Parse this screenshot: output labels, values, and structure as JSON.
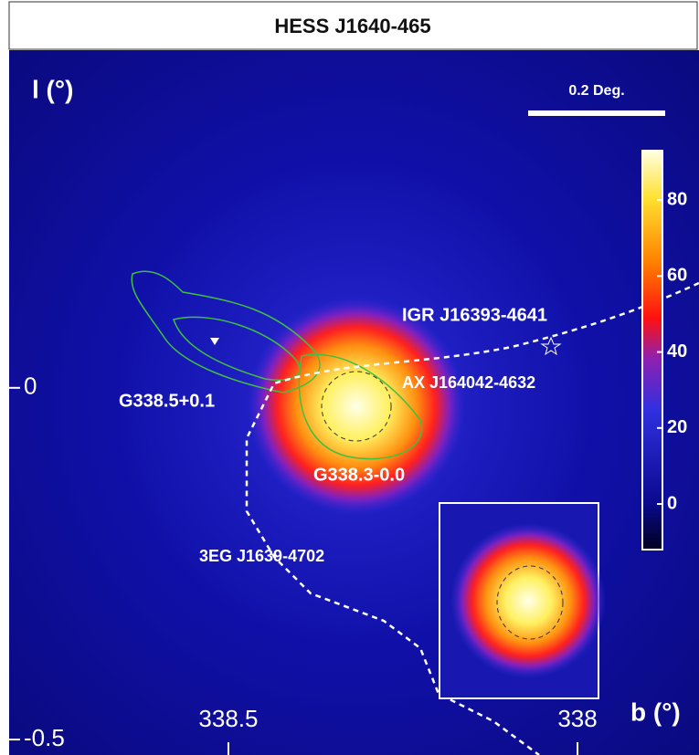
{
  "chart_data": {
    "type": "skymap",
    "title": "HESS J1640-465",
    "x_label": "b (°)",
    "y_label": "l (°)",
    "xlim": [
      338.814,
      337.826
    ],
    "xticks": [
      338.5,
      338
    ],
    "ylim": [
      -0.522,
      0.48
    ],
    "yticks": [
      0,
      -0.5
    ],
    "colorbar": {
      "clim": [
        -12,
        93
      ],
      "ticks": [
        0,
        20,
        40,
        60,
        80
      ]
    },
    "scale_bar": "0.2 Deg.",
    "annotations": [
      "IGR J16393-4641",
      "AX J164042-4632",
      "G338.5+0.1",
      "G338.3-0.0",
      "3EG J1639-4702"
    ]
  }
}
